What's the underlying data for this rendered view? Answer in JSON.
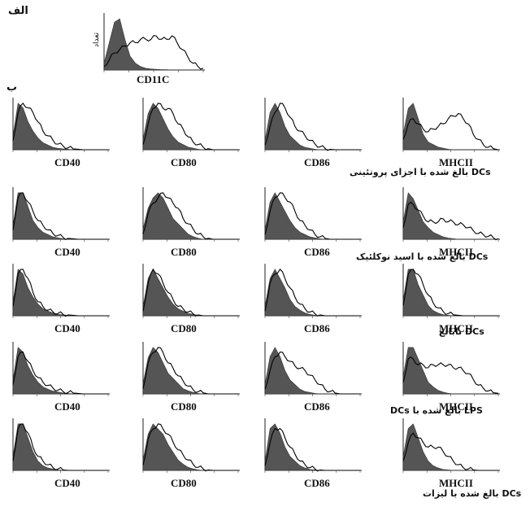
{
  "panel_a": {
    "letter": "الف",
    "ylabel": "تعداد",
    "marker": "CD11C"
  },
  "panel_b": {
    "letter": "ب"
  },
  "markers": [
    "CD40",
    "CD80",
    "CD86",
    "MHCII"
  ],
  "row_captions": [
    "DCs بالغ شده با اجزای پروتئینی",
    "DCs بالغ شده با اسید نوکلئیک",
    "DCs نابالغ",
    "LPS بالغ شده با DCs",
    "DCs بالغ شده با لیزات"
  ],
  "chart_data": {
    "type": "area",
    "description_note": "Flow cytometry histograms: filled = isotype control, outline = stained sample. Values are relative counts over fluorescence bins 0-19.",
    "panels": [
      {
        "panel": "a",
        "marker": "CD11C",
        "control": [
          2,
          8,
          14,
          15,
          9,
          4,
          2,
          1,
          0.5,
          0.3,
          0.2,
          0.1,
          0.1,
          0,
          0,
          0,
          0,
          0,
          0,
          0
        ],
        "sample": [
          1,
          3,
          5,
          6,
          7,
          8,
          8,
          9,
          9,
          9,
          10,
          9,
          9,
          10,
          8,
          6,
          4,
          2,
          1,
          0.5
        ]
      },
      {
        "panel": "b",
        "row": 1,
        "marker": "CD40",
        "control": [
          3,
          10,
          9,
          6,
          4,
          2.5,
          1.5,
          1,
          0.5,
          0.3,
          0.2,
          0.1,
          0,
          0,
          0,
          0,
          0,
          0,
          0,
          0
        ],
        "sample": [
          2,
          8,
          10,
          9,
          8,
          6,
          4,
          3,
          2,
          1.2,
          0.8,
          0.4,
          0.2,
          0.1,
          0,
          0,
          0,
          0,
          0,
          0
        ]
      },
      {
        "panel": "b",
        "row": 1,
        "marker": "CD80",
        "control": [
          2,
          7,
          9,
          8,
          6,
          4,
          2.5,
          1.5,
          1,
          0.5,
          0.3,
          0.1,
          0,
          0,
          0,
          0,
          0,
          0,
          0,
          0
        ],
        "sample": [
          1,
          5,
          8,
          9,
          8,
          8,
          7,
          5,
          4,
          2.5,
          1.5,
          1,
          0.5,
          0.2,
          0,
          0,
          0,
          0,
          0,
          0
        ]
      },
      {
        "panel": "b",
        "row": 1,
        "marker": "CD86",
        "control": [
          2,
          8,
          10,
          8,
          5,
          3,
          2,
          1,
          0.5,
          0.3,
          0.1,
          0,
          0,
          0,
          0,
          0,
          0,
          0,
          0,
          0
        ],
        "sample": [
          1,
          5,
          8,
          10,
          9,
          7,
          5,
          4,
          3,
          2,
          1.2,
          0.6,
          0.3,
          0.1,
          0,
          0,
          0,
          0,
          0,
          0
        ]
      },
      {
        "panel": "b",
        "row": 1,
        "marker": "MHCII",
        "control": [
          3,
          8,
          9,
          6,
          3,
          1.5,
          1,
          0.5,
          0.3,
          0.1,
          0,
          0,
          0,
          0,
          0,
          0,
          0,
          0,
          0,
          0
        ],
        "sample": [
          2,
          5,
          6,
          5,
          4,
          3.5,
          4,
          4.5,
          5,
          6,
          6.5,
          7,
          6,
          5,
          3,
          2,
          1,
          0.5,
          0.2,
          0
        ]
      },
      {
        "panel": "b",
        "row": 2,
        "marker": "CD40",
        "control": [
          3,
          10,
          10,
          7,
          4,
          2.5,
          1.5,
          1,
          0.5,
          0.3,
          0.1,
          0,
          0,
          0,
          0,
          0,
          0,
          0,
          0,
          0
        ],
        "sample": [
          2,
          9,
          10,
          8,
          6,
          4,
          3,
          2,
          1.2,
          0.8,
          0.4,
          0.2,
          0.1,
          0,
          0,
          0,
          0,
          0,
          0,
          0
        ]
      },
      {
        "panel": "b",
        "row": 2,
        "marker": "CD80",
        "control": [
          2,
          6,
          8,
          9,
          8,
          6,
          4,
          3,
          2,
          1,
          0.5,
          0.2,
          0,
          0,
          0,
          0,
          0,
          0,
          0,
          0
        ],
        "sample": [
          1,
          5,
          7,
          8,
          9,
          8,
          7,
          6,
          4,
          3,
          2,
          1,
          0.5,
          0.2,
          0,
          0,
          0,
          0,
          0,
          0
        ]
      },
      {
        "panel": "b",
        "row": 2,
        "marker": "CD86",
        "control": [
          2,
          8,
          10,
          8,
          6,
          4,
          2.5,
          1.5,
          1,
          0.5,
          0.3,
          0.1,
          0,
          0,
          0,
          0,
          0,
          0,
          0,
          0
        ],
        "sample": [
          1,
          6,
          9,
          10,
          9,
          8,
          6,
          4,
          3,
          2,
          1,
          0.5,
          0.2,
          0,
          0,
          0,
          0,
          0,
          0,
          0
        ]
      },
      {
        "panel": "b",
        "row": 2,
        "marker": "MHCII",
        "control": [
          3,
          8,
          7,
          5,
          3,
          2,
          1.2,
          0.8,
          0.4,
          0.2,
          0.1,
          0,
          0,
          0,
          0,
          0,
          0,
          0,
          0,
          0
        ],
        "sample": [
          2,
          6,
          6,
          5,
          4,
          3,
          3,
          3,
          3.5,
          3,
          3,
          2.5,
          2.5,
          2,
          1.5,
          1,
          0.8,
          0.5,
          0.3,
          0.1
        ]
      },
      {
        "panel": "b",
        "row": 3,
        "marker": "CD40",
        "control": [
          3,
          10,
          9,
          6,
          4,
          2.5,
          1.5,
          1,
          0.6,
          0.3,
          0.2,
          0.1,
          0,
          0,
          0,
          0,
          0,
          0,
          0,
          0
        ],
        "sample": [
          2,
          9,
          10,
          8,
          5,
          3,
          2,
          1.2,
          0.8,
          0.5,
          0.3,
          0.2,
          0.1,
          0,
          0,
          0,
          0,
          0,
          0,
          0
        ]
      },
      {
        "panel": "b",
        "row": 3,
        "marker": "CD80",
        "control": [
          2,
          8,
          10,
          8,
          6,
          4,
          2.5,
          1.5,
          1,
          0.5,
          0.3,
          0.1,
          0,
          0,
          0,
          0,
          0,
          0,
          0,
          0
        ],
        "sample": [
          1,
          7,
          10,
          9,
          7,
          5,
          3.5,
          2,
          1.5,
          0.8,
          0.4,
          0.2,
          0,
          0,
          0,
          0,
          0,
          0,
          0,
          0
        ]
      },
      {
        "panel": "b",
        "row": 3,
        "marker": "CD86",
        "control": [
          2,
          8,
          10,
          8,
          6,
          3.5,
          2,
          1.2,
          0.6,
          0.3,
          0.1,
          0,
          0,
          0,
          0,
          0,
          0,
          0,
          0,
          0
        ],
        "sample": [
          1,
          7,
          9,
          10,
          8,
          6,
          4,
          2.5,
          1.5,
          0.8,
          0.4,
          0.2,
          0,
          0,
          0,
          0,
          0,
          0,
          0,
          0
        ]
      },
      {
        "panel": "b",
        "row": 3,
        "marker": "MHCII",
        "control": [
          3,
          9,
          9,
          6,
          4,
          2,
          1,
          0.5,
          0.2,
          0.1,
          0,
          0,
          0,
          0,
          0,
          0,
          0,
          0,
          0,
          0
        ],
        "sample": [
          2,
          8,
          9,
          8,
          6,
          4,
          2.5,
          1.5,
          0.8,
          0.4,
          0.2,
          0.1,
          0,
          0,
          0,
          0,
          0,
          0,
          0,
          0
        ]
      },
      {
        "panel": "b",
        "row": 4,
        "marker": "CD40",
        "control": [
          3,
          10,
          9,
          6,
          4,
          2.5,
          1.5,
          1,
          0.6,
          0.4,
          0.2,
          0.1,
          0,
          0,
          0,
          0,
          0,
          0,
          0,
          0
        ],
        "sample": [
          2,
          8,
          9,
          7,
          5,
          3.5,
          2.5,
          1.8,
          1.2,
          0.8,
          0.5,
          0.3,
          0.2,
          0.1,
          0,
          0,
          0,
          0,
          0,
          0
        ]
      },
      {
        "panel": "b",
        "row": 4,
        "marker": "CD80",
        "control": [
          2,
          7,
          9,
          8,
          6,
          4,
          3,
          2,
          1,
          0.6,
          0.3,
          0.1,
          0,
          0,
          0,
          0,
          0,
          0,
          0,
          0
        ],
        "sample": [
          1,
          6,
          8,
          9,
          8,
          6,
          5,
          3.5,
          2.5,
          1.5,
          0.8,
          0.4,
          0.2,
          0,
          0,
          0,
          0,
          0,
          0,
          0
        ]
      },
      {
        "panel": "b",
        "row": 4,
        "marker": "CD86",
        "control": [
          2,
          8,
          10,
          8,
          5,
          3,
          2,
          1,
          0.5,
          0.3,
          0.1,
          0,
          0,
          0,
          0,
          0,
          0,
          0,
          0,
          0
        ],
        "sample": [
          1,
          5,
          8,
          9,
          8,
          7,
          6,
          5.5,
          5,
          4,
          3,
          2,
          1,
          0.5,
          0.2,
          0,
          0,
          0,
          0,
          0
        ]
      },
      {
        "panel": "b",
        "row": 4,
        "marker": "MHCII",
        "control": [
          3,
          8,
          8,
          6,
          4,
          2,
          1.2,
          0.6,
          0.3,
          0.1,
          0,
          0,
          0,
          0,
          0,
          0,
          0,
          0,
          0,
          0
        ],
        "sample": [
          2,
          6,
          6,
          5,
          5,
          4.5,
          5,
          5,
          5,
          5,
          4.5,
          4.5,
          4,
          3.5,
          2.5,
          1.5,
          1,
          0.5,
          0.2,
          0.1
        ]
      },
      {
        "panel": "b",
        "row": 5,
        "marker": "CD40",
        "control": [
          3,
          10,
          10,
          7,
          4,
          2,
          1,
          0.5,
          0.3,
          0.1,
          0,
          0,
          0,
          0,
          0,
          0,
          0,
          0,
          0,
          0
        ],
        "sample": [
          2,
          9,
          10,
          8,
          5,
          3,
          2,
          1.2,
          0.6,
          0.3,
          0.1,
          0,
          0,
          0,
          0,
          0,
          0,
          0,
          0,
          0
        ]
      },
      {
        "panel": "b",
        "row": 5,
        "marker": "CD80",
        "control": [
          2,
          7,
          9,
          8,
          7,
          5,
          3.5,
          2,
          1.2,
          0.6,
          0.3,
          0.1,
          0,
          0,
          0,
          0,
          0,
          0,
          0,
          0
        ],
        "sample": [
          1,
          6,
          8,
          9,
          8,
          7,
          5.5,
          4,
          3,
          2,
          1.2,
          0.6,
          0.3,
          0.1,
          0,
          0,
          0,
          0,
          0,
          0
        ]
      },
      {
        "panel": "b",
        "row": 5,
        "marker": "CD86",
        "control": [
          2,
          9,
          10,
          8,
          5,
          3,
          2,
          1,
          0.5,
          0.2,
          0.1,
          0,
          0,
          0,
          0,
          0,
          0,
          0,
          0,
          0
        ],
        "sample": [
          1,
          6,
          9,
          9,
          7,
          5,
          3.5,
          2,
          1.2,
          0.6,
          0.3,
          0.1,
          0,
          0,
          0,
          0,
          0,
          0,
          0,
          0
        ]
      },
      {
        "panel": "b",
        "row": 5,
        "marker": "MHCII",
        "control": [
          3,
          9,
          10,
          7,
          4,
          2,
          1,
          0.5,
          0.2,
          0.1,
          0,
          0,
          0,
          0,
          0,
          0,
          0,
          0,
          0,
          0
        ],
        "sample": [
          2,
          6,
          8,
          7,
          6,
          5,
          5,
          5,
          4,
          3,
          2,
          1.2,
          0.6,
          0.3,
          0.1,
          0,
          0,
          0,
          0,
          0
        ]
      }
    ]
  }
}
